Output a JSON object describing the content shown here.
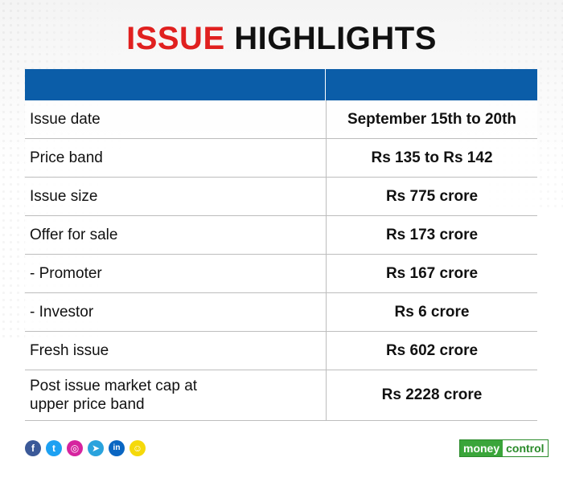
{
  "title": {
    "part1": "ISSUE",
    "part2": "HIGHLIGHTS"
  },
  "table": {
    "header": [
      "",
      ""
    ],
    "rows": [
      {
        "label": "Issue date",
        "value": "September 15th to 20th"
      },
      {
        "label": "Price band",
        "value": "Rs 135 to Rs 142"
      },
      {
        "label": "Issue size",
        "value": "Rs 775 crore"
      },
      {
        "label": "Offer for sale",
        "value": "Rs 173 crore"
      },
      {
        "label": "- Promoter",
        "value": "Rs 167 crore"
      },
      {
        "label": "- Investor",
        "value": "Rs 6 crore"
      },
      {
        "label": "Fresh issue",
        "value": "Rs 602 crore"
      },
      {
        "label": "Post issue market cap at upper price band",
        "value": "Rs 2228 crore"
      }
    ]
  },
  "footer": {
    "social_icons": [
      {
        "name": "facebook-icon",
        "glyph": "f",
        "color": "#3b5998"
      },
      {
        "name": "twitter-icon",
        "glyph": "t",
        "color": "#1da1f2"
      },
      {
        "name": "instagram-icon",
        "glyph": "◎",
        "color": "#d6249f"
      },
      {
        "name": "telegram-icon",
        "glyph": "➤",
        "color": "#2aa3dd"
      },
      {
        "name": "linkedin-icon",
        "glyph": "in",
        "color": "#0a66c2"
      },
      {
        "name": "snapchat-icon",
        "glyph": "☺",
        "color": "#f5d90a"
      }
    ],
    "logo": {
      "part1": "money",
      "part2": "control"
    }
  },
  "colors": {
    "title_accent": "#e0201f",
    "header_bar": "#0b5da8",
    "logo_green": "#3aa53a"
  }
}
